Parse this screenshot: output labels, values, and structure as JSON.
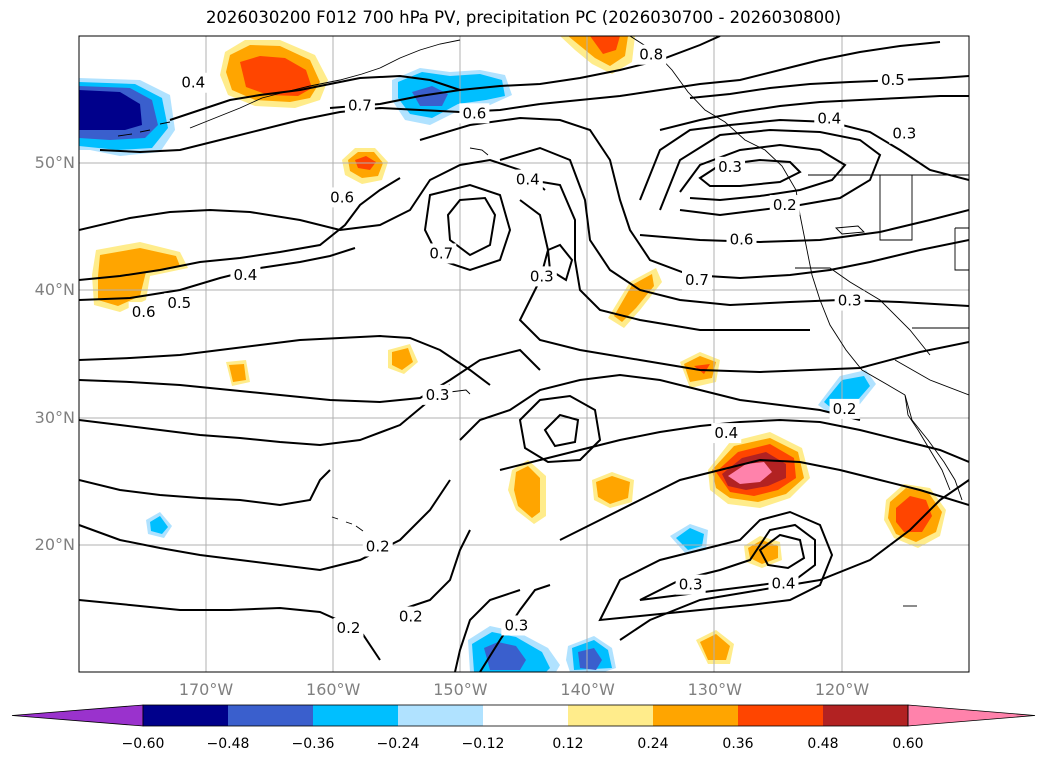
{
  "title": "2026030200 F012 700 hPa PV, precipitation PC (2026030700 - 2026030800)",
  "lat_labels": [
    {
      "value": 50,
      "text": "50°N"
    },
    {
      "value": 40,
      "text": "40°N"
    },
    {
      "value": 30,
      "text": "30°N"
    },
    {
      "value": 20,
      "text": "20°N"
    }
  ],
  "lon_labels": [
    {
      "value": -170,
      "text": "170°W"
    },
    {
      "value": -160,
      "text": "160°W"
    },
    {
      "value": -150,
      "text": "150°W"
    },
    {
      "value": -140,
      "text": "140°W"
    },
    {
      "value": -130,
      "text": "130°W"
    },
    {
      "value": -120,
      "text": "120°W"
    }
  ],
  "colorbar": {
    "ticks": [
      "−0.60",
      "−0.48",
      "−0.36",
      "−0.24",
      "−0.12",
      "0.12",
      "0.24",
      "0.36",
      "0.48",
      "0.60"
    ],
    "colors": [
      "#9a32cd",
      "#00008b",
      "#3a5fcd",
      "#00bfff",
      "#b0e2ff",
      "#ffffff",
      "#ffec8b",
      "#ffa500",
      "#ff4500",
      "#b22222",
      "#ff82ab"
    ]
  },
  "contour_labels": [
    {
      "text": "0.4",
      "lon": -171,
      "lat": 56.3
    },
    {
      "text": "0.7",
      "lon": -157.9,
      "lat": 54.5
    },
    {
      "text": "0.6",
      "lon": -148.9,
      "lat": 53.9
    },
    {
      "text": "0.8",
      "lon": -135,
      "lat": 58.5
    },
    {
      "text": "0.5",
      "lon": -116,
      "lat": 56.5
    },
    {
      "text": "0.4",
      "lon": -121,
      "lat": 53.5
    },
    {
      "text": "0.3",
      "lon": -115.1,
      "lat": 52.3
    },
    {
      "text": "0.3",
      "lon": -128.8,
      "lat": 49.7
    },
    {
      "text": "0.2",
      "lon": -124.5,
      "lat": 46.7
    },
    {
      "text": "0.6",
      "lon": -127.9,
      "lat": 44
    },
    {
      "text": "0.4",
      "lon": -144.7,
      "lat": 48.7
    },
    {
      "text": "0.6",
      "lon": -159.3,
      "lat": 47.3
    },
    {
      "text": "0.7",
      "lon": -151.5,
      "lat": 42.9
    },
    {
      "text": "0.3",
      "lon": -143.6,
      "lat": 41.1
    },
    {
      "text": "0.7",
      "lon": -131.4,
      "lat": 40.8
    },
    {
      "text": "0.4",
      "lon": -166.9,
      "lat": 41.2
    },
    {
      "text": "0.5",
      "lon": -172.1,
      "lat": 39
    },
    {
      "text": "0.6",
      "lon": -174.9,
      "lat": 38.3
    },
    {
      "text": "0.3",
      "lon": -119.4,
      "lat": 39.2
    },
    {
      "text": "0.3",
      "lon": -151.8,
      "lat": 31.8
    },
    {
      "text": "0.2",
      "lon": -119.8,
      "lat": 30.7
    },
    {
      "text": "0.4",
      "lon": -129.1,
      "lat": 28.8
    },
    {
      "text": "0.2",
      "lon": -156.5,
      "lat": 19.9
    },
    {
      "text": "0.3",
      "lon": -131.9,
      "lat": 16.9
    },
    {
      "text": "0.4",
      "lon": -124.6,
      "lat": 17
    },
    {
      "text": "0.2",
      "lon": -158.8,
      "lat": 13.5
    },
    {
      "text": "0.2",
      "lon": -153.9,
      "lat": 14.4
    },
    {
      "text": "0.3",
      "lon": -145.6,
      "lat": 13.7
    }
  ]
}
